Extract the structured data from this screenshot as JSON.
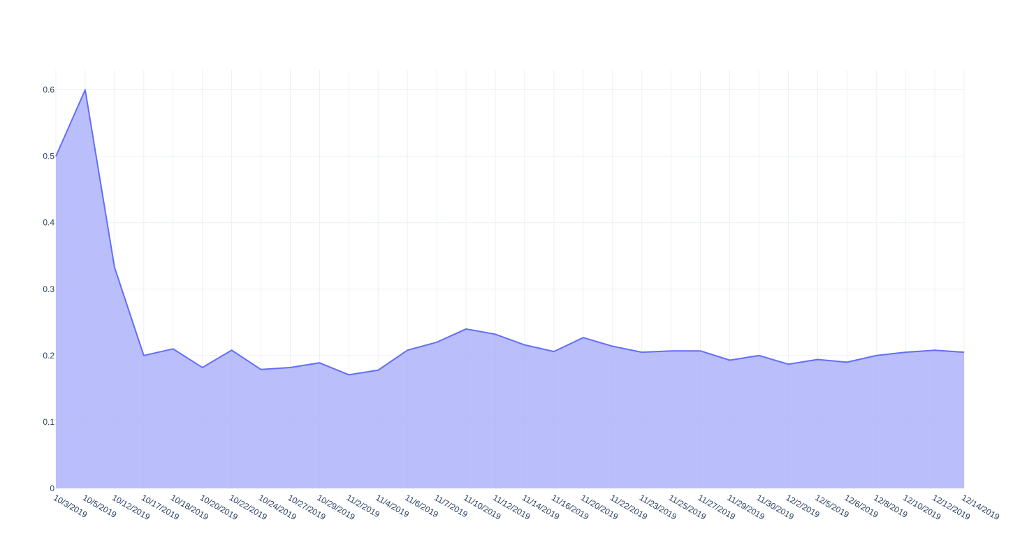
{
  "chart_data": {
    "type": "area",
    "title": "",
    "xlabel": "",
    "ylabel": "",
    "ylim": [
      0,
      0.63
    ],
    "y_ticks": [
      "0",
      "0.1",
      "0.2",
      "0.3",
      "0.4",
      "0.5",
      "0.6"
    ],
    "grid": true,
    "colors": {
      "line": "#636efa",
      "fill": "#aeb3fa",
      "grid": "#ebf0f8",
      "text": "#2a3f5f"
    },
    "x": [
      "10/3/2019",
      "10/5/2019",
      "10/12/2019",
      "10/17/2019",
      "10/18/2019",
      "10/20/2019",
      "10/22/2019",
      "10/24/2019",
      "10/27/2019",
      "10/29/2019",
      "11/2/2019",
      "11/4/2019",
      "11/6/2019",
      "11/7/2019",
      "11/10/2019",
      "11/12/2019",
      "11/14/2019",
      "11/16/2019",
      "11/20/2019",
      "11/22/2019",
      "11/23/2019",
      "11/25/2019",
      "11/27/2019",
      "11/29/2019",
      "11/30/2019",
      "12/2/2019",
      "12/5/2019",
      "12/6/2019",
      "12/8/2019",
      "12/10/2019",
      "12/12/2019",
      "12/14/2019"
    ],
    "series": [
      {
        "values": [
          0.5,
          0.6,
          0.333,
          0.2,
          0.21,
          0.182,
          0.208,
          0.179,
          0.182,
          0.189,
          0.171,
          0.178,
          0.208,
          0.22,
          0.24,
          0.232,
          0.216,
          0.206,
          0.227,
          0.214,
          0.205,
          0.207,
          0.207,
          0.193,
          0.2,
          0.187,
          0.194,
          0.19,
          0.2,
          0.205,
          0.208,
          0.205
        ]
      }
    ]
  }
}
